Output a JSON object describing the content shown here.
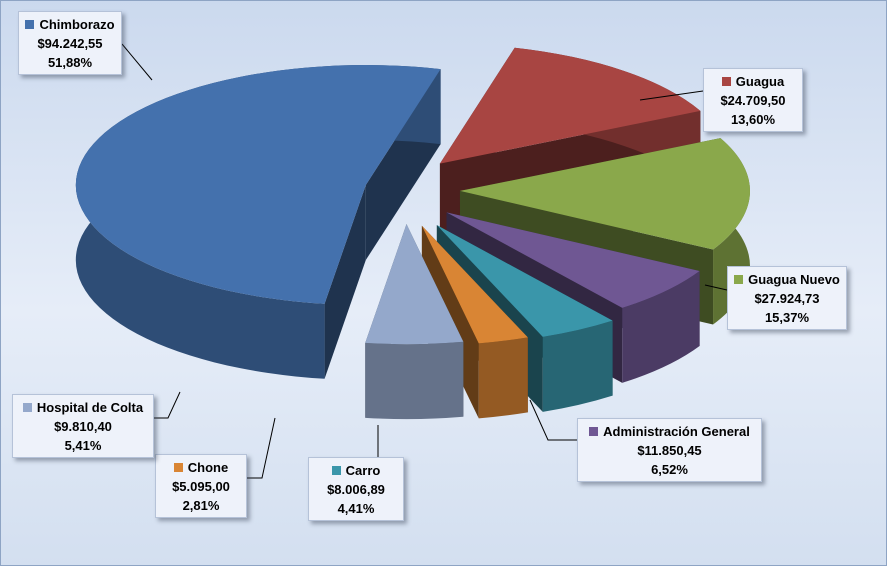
{
  "chart_data": {
    "type": "pie",
    "style": "3d-exploded",
    "title": "",
    "legend": "none",
    "slices": [
      {
        "label": "Chimborazo",
        "value_text": "$94.242,55",
        "percent_text": "51,88%",
        "value": 94242.55,
        "percent": 51.88,
        "color": "#4471ad"
      },
      {
        "label": "Guagua",
        "value_text": "$24.709,50",
        "percent_text": "13,60%",
        "value": 24709.5,
        "percent": 13.6,
        "color": "#a84542"
      },
      {
        "label": "Guagua Nuevo",
        "value_text": "$27.924,73",
        "percent_text": "15,37%",
        "value": 27924.73,
        "percent": 15.37,
        "color": "#8aa84b"
      },
      {
        "label": "Administración General",
        "value_text": "$11.850,45",
        "percent_text": "6,52%",
        "value": 11850.45,
        "percent": 6.52,
        "color": "#6f5793"
      },
      {
        "label": "Carro",
        "value_text": "$8.006,89",
        "percent_text": "4,41%",
        "value": 8006.89,
        "percent": 4.41,
        "color": "#3a96aa"
      },
      {
        "label": "Chone",
        "value_text": "$5.095,00",
        "percent_text": "2,81%",
        "value": 5095.0,
        "percent": 2.81,
        "color": "#d98534"
      },
      {
        "label": "Hospital de Colta",
        "value_text": "$9.810,40",
        "percent_text": "5,41%",
        "value": 9810.4,
        "percent": 5.41,
        "color": "#94a8cb"
      }
    ]
  }
}
